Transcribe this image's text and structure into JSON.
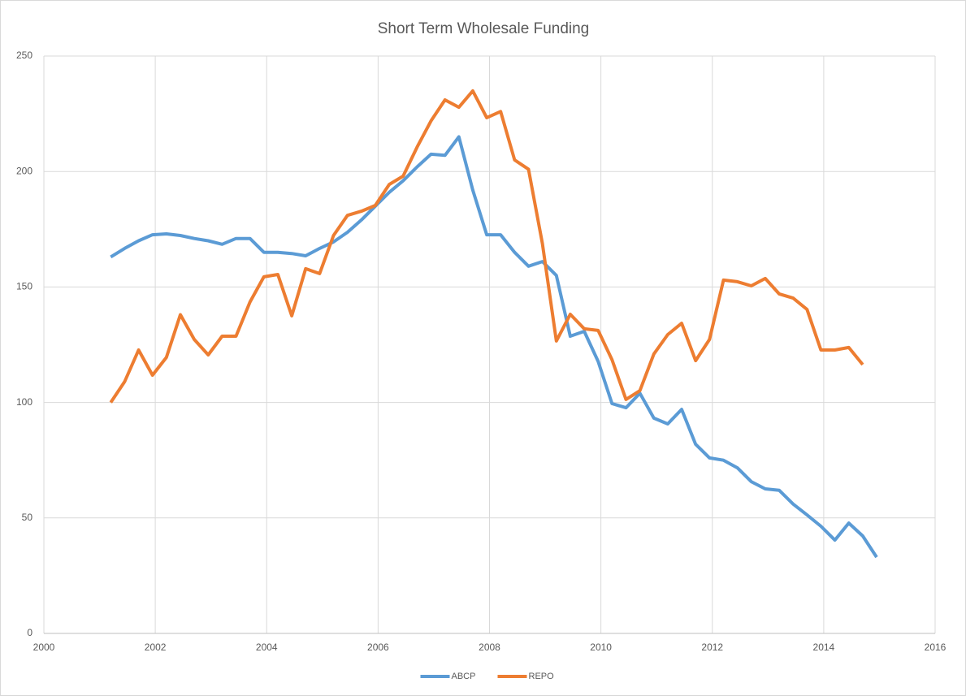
{
  "chart_data": {
    "type": "line",
    "title": "Short Term Wholesale Funding",
    "x": [
      2001.2,
      2001.45,
      2001.7,
      2001.95,
      2002.2,
      2002.45,
      2002.7,
      2002.95,
      2003.2,
      2003.45,
      2003.7,
      2003.95,
      2004.2,
      2004.45,
      2004.7,
      2004.95,
      2005.2,
      2005.45,
      2005.7,
      2005.95,
      2006.2,
      2006.45,
      2006.7,
      2006.95,
      2007.2,
      2007.45,
      2007.7,
      2007.95,
      2008.2,
      2008.45,
      2008.7,
      2008.95,
      2009.2,
      2009.45,
      2009.7,
      2009.95,
      2010.2,
      2010.45,
      2010.7,
      2010.95,
      2011.2,
      2011.45,
      2011.7,
      2011.95,
      2012.2,
      2012.45,
      2012.7,
      2012.95,
      2013.2,
      2013.45,
      2013.7,
      2013.95,
      2014.2,
      2014.45,
      2014.7,
      2014.95
    ],
    "series": [
      {
        "name": "ABCP",
        "color": "#5b9bd5",
        "values": [
          163,
          166.7,
          170,
          172.6,
          173,
          172.3,
          171,
          170,
          168.5,
          171,
          171,
          165,
          165,
          164.5,
          163.5,
          166.7,
          169.5,
          173.7,
          179,
          185,
          191,
          196,
          202,
          207.5,
          207,
          215,
          192,
          172.6,
          172.6,
          165,
          159,
          161,
          155,
          128.7,
          130.8,
          117.8,
          99.5,
          97.7,
          104,
          93.2,
          90.7,
          97,
          81.9,
          76,
          75,
          71.7,
          65.7,
          62.6,
          62,
          56,
          51.3,
          46.4,
          40.4,
          47.8,
          42.2,
          33
        ]
      },
      {
        "name": "REPO",
        "color": "#ed7d31",
        "values": [
          100,
          109,
          122.7,
          111.8,
          119.5,
          138,
          127.3,
          120.6,
          128.7,
          128.7,
          143.5,
          154.4,
          155.4,
          137.5,
          157.9,
          155.8,
          172.3,
          181,
          182.8,
          185.3,
          194.4,
          198,
          210.6,
          221.9,
          231,
          227.8,
          234.9,
          223.3,
          226,
          205,
          201,
          168.8,
          126.6,
          138.2,
          131.9,
          131.2,
          118.5,
          101.3,
          105.1,
          121,
          129.4,
          134.3,
          118.1,
          127.3,
          153,
          152.3,
          150.5,
          153.7,
          147,
          145.2,
          140.3,
          122.7,
          122.7,
          123.8,
          116.4,
          null
        ]
      }
    ],
    "xlim": [
      2000,
      2016
    ],
    "xticks": [
      2000,
      2002,
      2004,
      2006,
      2008,
      2010,
      2012,
      2014,
      2016
    ],
    "ylim": [
      0,
      250
    ],
    "yticks": [
      0,
      50,
      100,
      150,
      200,
      250
    ],
    "grid": true,
    "legend": "bottom"
  }
}
